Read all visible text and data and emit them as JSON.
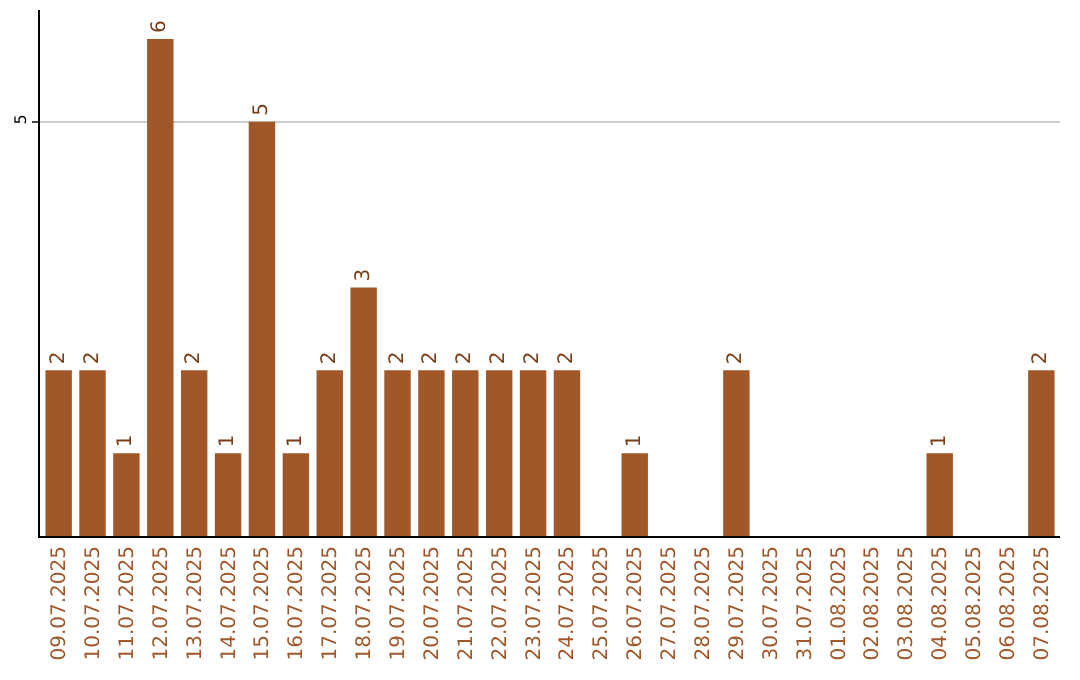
{
  "chart_data": {
    "type": "bar",
    "categories": [
      "09.07.2025",
      "10.07.2025",
      "11.07.2025",
      "12.07.2025",
      "13.07.2025",
      "14.07.2025",
      "15.07.2025",
      "16.07.2025",
      "17.07.2025",
      "18.07.2025",
      "19.07.2025",
      "20.07.2025",
      "21.07.2025",
      "22.07.2025",
      "23.07.2025",
      "24.07.2025",
      "25.07.2025",
      "26.07.2025",
      "27.07.2025",
      "28.07.2025",
      "29.07.2025",
      "30.07.2025",
      "31.07.2025",
      "01.08.2025",
      "02.08.2025",
      "03.08.2025",
      "04.08.2025",
      "05.08.2025",
      "06.08.2025",
      "07.08.2025"
    ],
    "values": [
      2,
      2,
      1,
      6,
      2,
      1,
      5,
      1,
      2,
      3,
      2,
      2,
      2,
      2,
      2,
      2,
      0,
      1,
      0,
      0,
      2,
      0,
      0,
      0,
      0,
      0,
      1,
      0,
      0,
      2
    ],
    "value_labels": [
      "2",
      "2",
      "1",
      "6",
      "2",
      "1",
      "5",
      "1",
      "2",
      "3",
      "2",
      "2",
      "2",
      "2",
      "2",
      "2",
      null,
      "1",
      null,
      null,
      "2",
      null,
      null,
      null,
      null,
      null,
      "1",
      null,
      null,
      "2"
    ],
    "color": "#a0582a",
    "ylim": [
      0,
      6.35
    ],
    "yticks": [
      5
    ],
    "grid": "y",
    "legend": false
  }
}
